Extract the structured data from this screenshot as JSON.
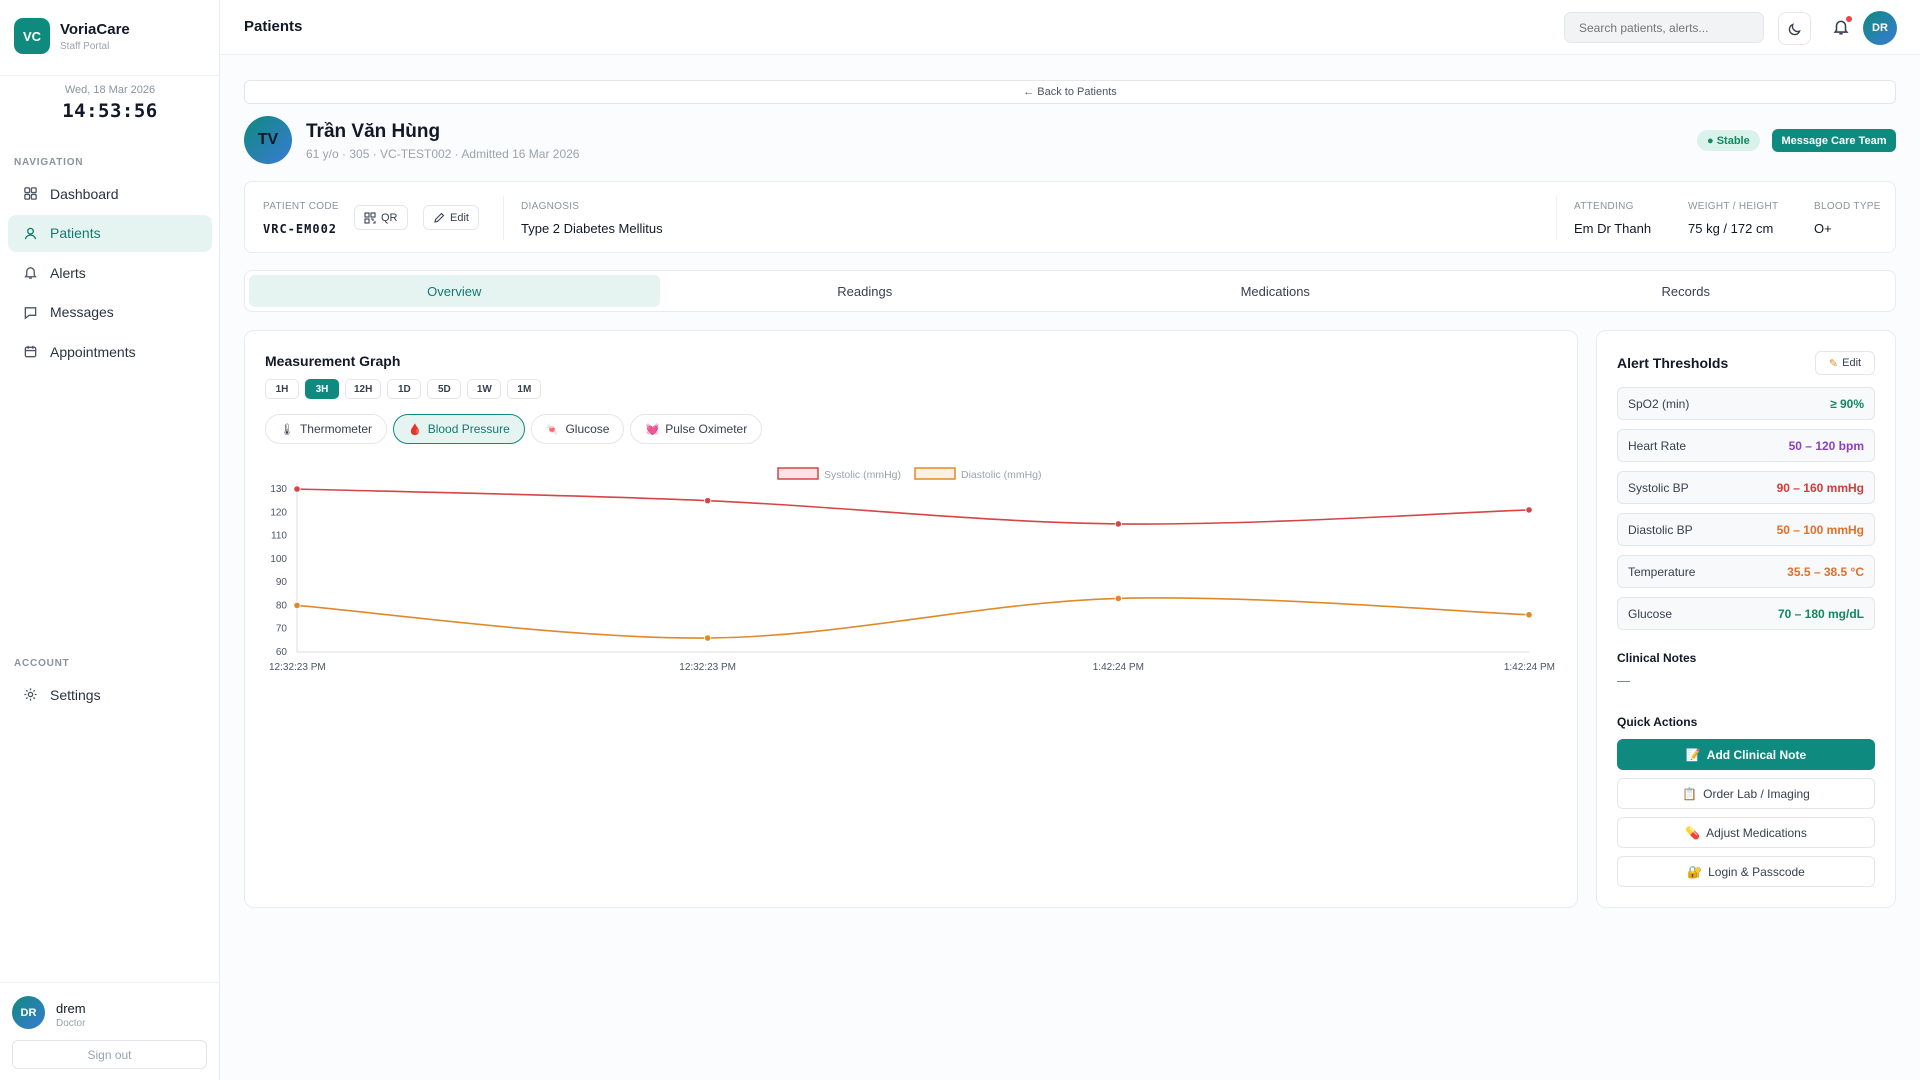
{
  "app": {
    "name": "VoriaCare",
    "subtitle": "Staff Portal",
    "logo_text": "VC"
  },
  "clock": {
    "date": "Wed, 18 Mar 2026",
    "time": "14:53:56"
  },
  "sidebar": {
    "nav_section": "NAVIGATION",
    "items": [
      {
        "label": "Dashboard",
        "icon": "grid-icon"
      },
      {
        "label": "Patients",
        "icon": "user-icon",
        "active": true
      },
      {
        "label": "Alerts",
        "icon": "bell-icon"
      },
      {
        "label": "Messages",
        "icon": "message-icon"
      },
      {
        "label": "Appointments",
        "icon": "calendar-icon"
      }
    ],
    "account_section": "ACCOUNT",
    "settings_label": "Settings"
  },
  "user": {
    "initials": "DR",
    "name": "drem",
    "role": "Doctor",
    "signout": "Sign out"
  },
  "topbar": {
    "title": "Patients",
    "search_placeholder": "Search patients, alerts...",
    "avatar": "DR"
  },
  "back_link": "← Back to Patients",
  "patient": {
    "initials": "TV",
    "name": "Trần Văn Hùng",
    "meta": "61 y/o · 305 · VC-TEST002 · Admitted 16 Mar 2026",
    "status": "● Stable",
    "message_btn": "Message Care Team"
  },
  "info": {
    "code_label": "PATIENT CODE",
    "code": "VRC-EM002",
    "qr_label": "QR",
    "edit_label": "Edit",
    "diagnosis_label": "DIAGNOSIS",
    "diagnosis": "Type 2 Diabetes Mellitus",
    "attending_label": "ATTENDING",
    "attending": "Em Dr Thanh",
    "wh_label": "WEIGHT / HEIGHT",
    "wh": "75 kg / 172 cm",
    "blood_label": "BLOOD TYPE",
    "blood": "O+"
  },
  "tabs": [
    "Overview",
    "Readings",
    "Medications",
    "Records"
  ],
  "graph": {
    "title": "Measurement Graph",
    "ranges": [
      "1H",
      "3H",
      "12H",
      "1D",
      "5D",
      "1W",
      "1M"
    ],
    "active_range": "3H",
    "sensors": [
      {
        "label": "Thermometer",
        "glyph": "🌡"
      },
      {
        "label": "Blood Pressure",
        "glyph": "🩸",
        "active": true
      },
      {
        "label": "Glucose",
        "glyph": "🍬"
      },
      {
        "label": "Pulse Oximeter",
        "glyph": "💓"
      }
    ]
  },
  "chart_data": {
    "type": "line",
    "x": [
      "12:32:23 PM",
      "12:32:23 PM",
      "1:42:24 PM",
      "1:42:24 PM"
    ],
    "series": [
      {
        "name": "Systolic (mmHg)",
        "values": [
          130,
          125,
          115,
          121
        ],
        "color": "#d64545"
      },
      {
        "name": "Diastolic (mmHg)",
        "values": [
          80,
          66,
          83,
          76
        ],
        "color": "#e0892a"
      }
    ],
    "yticks": [
      60,
      70,
      80,
      90,
      100,
      110,
      120,
      130
    ],
    "ylim": [
      60,
      130
    ],
    "legend": "top"
  },
  "thresholds": {
    "title": "Alert Thresholds",
    "edit": "Edit",
    "rows": [
      {
        "name": "SpO2 (min)",
        "value": "≥ 90%",
        "color": "#0f8a5e"
      },
      {
        "name": "Heart Rate",
        "value": "50 – 120 bpm",
        "color": "#8b3fc9"
      },
      {
        "name": "Systolic BP",
        "value": "90 – 160 mmHg",
        "color": "#d63a3a"
      },
      {
        "name": "Diastolic BP",
        "value": "50 – 100 mmHg",
        "color": "#e0702a"
      },
      {
        "name": "Temperature",
        "value": "35.5 – 38.5 °C",
        "color": "#e0702a"
      },
      {
        "name": "Glucose",
        "value": "70 – 180 mg/dL",
        "color": "#0f8a5e"
      }
    ],
    "notes_title": "Clinical Notes",
    "notes_value": "—",
    "qa_title": "Quick Actions",
    "actions": [
      {
        "label": "Add Clinical Note",
        "glyph": "📝"
      },
      {
        "label": "Order Lab / Imaging",
        "glyph": "📋"
      },
      {
        "label": "Adjust Medications",
        "glyph": "💊"
      },
      {
        "label": "Login & Passcode",
        "glyph": "🔐"
      }
    ]
  }
}
